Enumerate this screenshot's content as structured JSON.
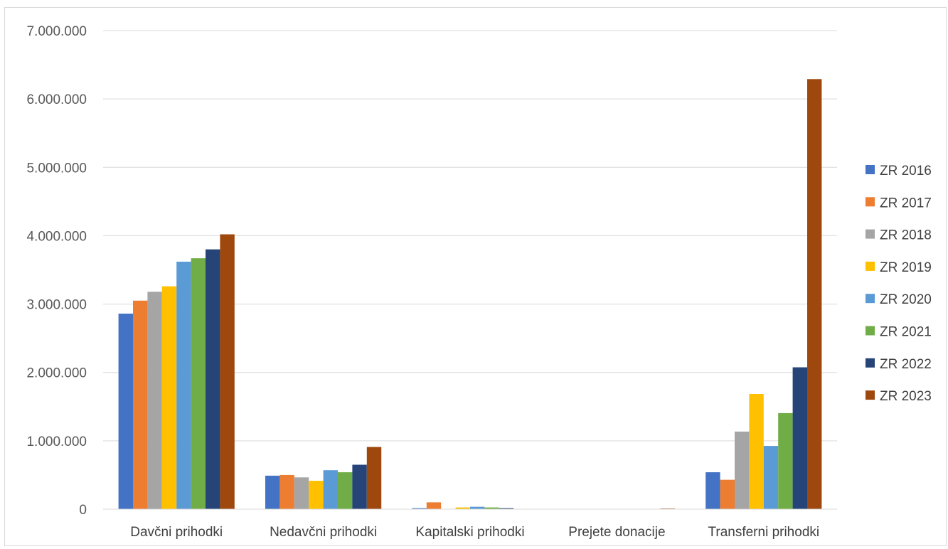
{
  "chart_data": {
    "type": "bar",
    "title": "",
    "xlabel": "",
    "ylabel": "",
    "ylim": [
      0,
      7000000
    ],
    "yticks": [
      0,
      1000000,
      2000000,
      3000000,
      4000000,
      5000000,
      6000000,
      7000000
    ],
    "ytick_labels": [
      "0",
      "1.000.000",
      "2.000.000",
      "3.000.000",
      "4.000.000",
      "5.000.000",
      "6.000.000",
      "7.000.000"
    ],
    "grid": true,
    "legend_position": "right",
    "categories": [
      "Davčni prihodki",
      "Nedavčni prihodki",
      "Kapitalski prihodki",
      "Prejete donacije",
      "Transferni prihodki"
    ],
    "series": [
      {
        "name": "ZR 2016",
        "color": "#4472C4",
        "values": [
          2860000,
          490000,
          15000,
          0,
          540000
        ]
      },
      {
        "name": "ZR 2017",
        "color": "#ED7D31",
        "values": [
          3050000,
          500000,
          100000,
          0,
          430000
        ]
      },
      {
        "name": "ZR 2018",
        "color": "#A5A5A5",
        "values": [
          3180000,
          465000,
          5000,
          0,
          1135000
        ]
      },
      {
        "name": "ZR 2019",
        "color": "#FFC000",
        "values": [
          3260000,
          415000,
          25000,
          0,
          1685000
        ]
      },
      {
        "name": "ZR 2020",
        "color": "#5B9BD5",
        "values": [
          3620000,
          570000,
          35000,
          0,
          925000
        ]
      },
      {
        "name": "ZR 2021",
        "color": "#70AD47",
        "values": [
          3670000,
          540000,
          25000,
          0,
          1405000
        ]
      },
      {
        "name": "ZR 2022",
        "color": "#264478",
        "values": [
          3800000,
          650000,
          15000,
          0,
          2075000
        ]
      },
      {
        "name": "ZR 2023",
        "color": "#9E480E",
        "values": [
          4020000,
          910000,
          5000,
          10000,
          6290000
        ]
      }
    ]
  }
}
